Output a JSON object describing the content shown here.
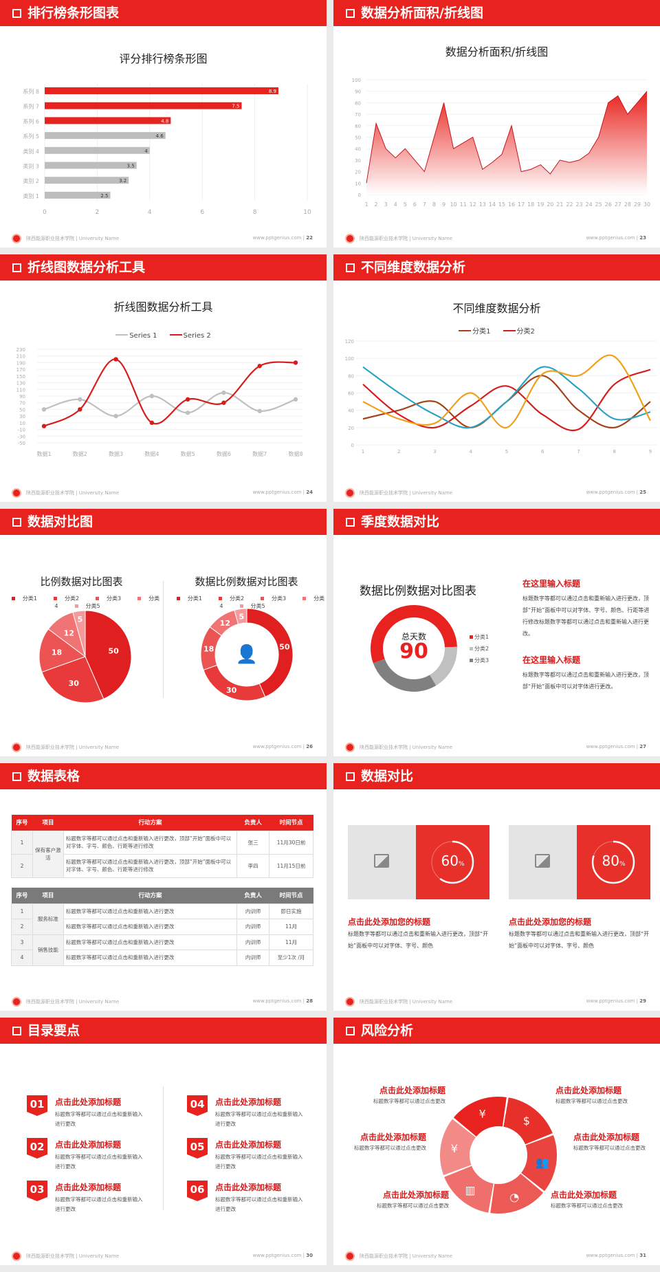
{
  "footer": {
    "school": "陕西能源职业技术学院 | University Name",
    "site": "www.pptgenius.com"
  },
  "colors": {
    "accent": "#e8231f",
    "gray_bar": "#bdbdbd",
    "dark_gray": "#7f7f7f"
  },
  "slides": [
    {
      "header": "排行榜条形图表",
      "page": "22",
      "chart_data": {
        "type": "bar",
        "orientation": "horizontal",
        "title": "评分排行榜条形图",
        "categories": [
          "系列 8",
          "系列 7",
          "系列 6",
          "系列 5",
          "类别 4",
          "类别 3",
          "类别 2",
          "类别 1"
        ],
        "values": [
          8.9,
          7.5,
          4.8,
          4.6,
          4,
          3.5,
          3.2,
          2.5
        ],
        "bar_colors": [
          "#e8231f",
          "#e8231f",
          "#e8231f",
          "#bdbdbd",
          "#bdbdbd",
          "#bdbdbd",
          "#bdbdbd",
          "#bdbdbd"
        ],
        "xlim": [
          0,
          10
        ],
        "xticks": [
          0,
          2,
          4,
          6,
          8,
          10
        ],
        "grid": true
      }
    },
    {
      "header": "数据分析面积/折线图",
      "page": "23",
      "chart_data": {
        "type": "area",
        "title": "数据分析面积/折线图",
        "x": [
          1,
          2,
          3,
          4,
          5,
          6,
          7,
          8,
          9,
          10,
          11,
          12,
          13,
          14,
          15,
          16,
          17,
          18,
          19,
          20,
          21,
          22,
          23,
          24,
          25,
          26,
          27,
          28,
          29,
          30
        ],
        "values": [
          10,
          62,
          40,
          32,
          40,
          30,
          20,
          50,
          80,
          40,
          45,
          50,
          22,
          28,
          35,
          60,
          20,
          22,
          26,
          18,
          30,
          28,
          30,
          36,
          50,
          80,
          86,
          70,
          80,
          90
        ],
        "ylim": [
          0,
          100
        ],
        "yticks": [
          0,
          10,
          20,
          30,
          40,
          50,
          60,
          70,
          80,
          90,
          100
        ],
        "color": "#e8231f",
        "grid": true
      }
    },
    {
      "header": "折线图数据分析工具",
      "page": "24",
      "chart_data": {
        "type": "line",
        "smooth": true,
        "title": "折线图数据分析工具",
        "categories": [
          "数据1",
          "数据2",
          "数据3",
          "数据4",
          "数据5",
          "数据6",
          "数据7",
          "数据8"
        ],
        "series": [
          {
            "name": "Series 1",
            "color": "#bfbfbf",
            "values": [
              50,
              80,
              30,
              90,
              40,
              100,
              45,
              80
            ]
          },
          {
            "name": "Series 2",
            "color": "#d71c1c",
            "values": [
              0,
              50,
              200,
              10,
              80,
              70,
              180,
              190
            ]
          }
        ],
        "ylim": [
          -50,
          230
        ],
        "yticks": [
          -50,
          -30,
          -10,
          10,
          30,
          50,
          70,
          90,
          110,
          130,
          150,
          170,
          190,
          210,
          230
        ],
        "legend": "top",
        "grid": true
      }
    },
    {
      "header": "不同维度数据分析",
      "page": "25",
      "chart_data": {
        "type": "line",
        "smooth": true,
        "title": "不同维度数据分析",
        "categories": [
          "1",
          "2",
          "3",
          "4",
          "5",
          "6",
          "7",
          "8",
          "9"
        ],
        "series": [
          {
            "name": "分类1",
            "color": "#a5421a",
            "values": [
              30,
              40,
              50,
              20,
              50,
              80,
              40,
              20,
              50
            ]
          },
          {
            "name": "分类2",
            "color": "#d71c1c",
            "values": [
              70,
              35,
              20,
              45,
              68,
              35,
              18,
              70,
              87
            ]
          },
          {
            "color": "#2aa3c4",
            "values": [
              90,
              60,
              35,
              20,
              50,
              90,
              65,
              30,
              38
            ]
          },
          {
            "color": "#f0a01a",
            "values": [
              50,
              30,
              25,
              60,
              20,
              82,
              80,
              102,
              28
            ]
          }
        ],
        "ylim": [
          0,
          120
        ],
        "yticks": [
          0,
          20,
          40,
          60,
          80,
          100,
          120
        ],
        "legend": "top",
        "grid": true
      }
    },
    {
      "header": "数据对比图",
      "page": "26",
      "chart_data": [
        {
          "type": "pie",
          "title": "比例数据对比图表",
          "categories": [
            "分类1",
            "分类2",
            "分类3",
            "分类4",
            "分类5"
          ],
          "values": [
            50,
            30,
            18,
            12,
            5
          ],
          "colors": [
            "#e02020",
            "#e83a3a",
            "#ec5454",
            "#f07474",
            "#f49a9a"
          ],
          "legend": "top"
        },
        {
          "type": "donut",
          "title": "数据比例数据对比图表",
          "categories": [
            "分类1",
            "分类2",
            "分类3",
            "分类4",
            "分类5"
          ],
          "values": [
            50,
            30,
            18,
            12,
            5
          ],
          "colors": [
            "#e02020",
            "#e83a3a",
            "#ec5454",
            "#f07474",
            "#f49a9a"
          ],
          "legend": "top",
          "center_icon": "customer-service-icon"
        }
      ]
    },
    {
      "header": "季度数据对比",
      "page": "27",
      "chart_data": {
        "type": "donut",
        "title": "数据比例数据对比图表",
        "center_label": "总天数",
        "center_value": "90",
        "categories": [
          "分类1",
          "分类2",
          "分类3"
        ],
        "shares_percent": [
          55,
          17,
          28
        ],
        "colors": [
          "#e8231f",
          "#c0c0c0",
          "#808080"
        ],
        "legend": "right"
      },
      "blocks": [
        {
          "title": "在这里输入标题",
          "text": "标题数字等都可以通过点击和重新输入进行更改，顶部“开始”面板中可以对字体、字号、颜色、行距等进行修改标题数字等都可以通过点击和重新输入进行更改。"
        },
        {
          "title": "在这里输入标题",
          "text": "标题数字等都可以通过点击和重新输入进行更改，顶部“开始”面板中可以对字体进行更改。"
        }
      ]
    },
    {
      "header": "数据表格",
      "page": "28",
      "columns": [
        "序号",
        "项目",
        "行动方案",
        "负责人",
        "时间节点"
      ],
      "table1": {
        "groups": [
          {
            "item": "保有客户激活",
            "rows": [
              {
                "no": "1",
                "plan": "标题数字等都可以通过点击和重新输入进行更改，顶部“开始”面板中可以对字体、字号、颜色、行距等进行修改",
                "owner": "张三",
                "time": "11月30日前"
              },
              {
                "no": "2",
                "plan": "标题数字等都可以通过点击和重新输入进行更改，顶部“开始”面板中可以对字体、字号、颜色、行距等进行修改",
                "owner": "李四",
                "time": "11月15日前"
              }
            ]
          }
        ]
      },
      "table2": {
        "groups": [
          {
            "item": "服务标准",
            "rows": [
              {
                "no": "1",
                "plan": "标题数字等都可以通过点击和重新输入进行更改",
                "owner": "内训师",
                "time": "即日实施"
              },
              {
                "no": "2",
                "plan": "标题数字等都可以通过点击和重新输入进行更改",
                "owner": "内训师",
                "time": "11月"
              }
            ]
          },
          {
            "item": "销售技能",
            "rows": [
              {
                "no": "3",
                "plan": "标题数字等都可以通过点击和重新输入进行更改",
                "owner": "内训师",
                "time": "11月"
              },
              {
                "no": "4",
                "plan": "标题数字等都可以通过点击和重新输入进行更改",
                "owner": "内训师",
                "time": "至少1次 /月"
              }
            ]
          }
        ]
      }
    },
    {
      "header": "数据对比",
      "page": "29",
      "cards": [
        {
          "percent": 60,
          "value": "60",
          "unit": "%",
          "title": "点击此处添加您的标题",
          "text": "标题数字等都可以通过点击和重新输入进行更改，顶部“开始”面板中可以对字体、字号、颜色",
          "image_icon": "add-image-icon"
        },
        {
          "percent": 80,
          "value": "80",
          "unit": "%",
          "title": "点击此处添加您的标题",
          "text": "标题数字等都可以通过点击和重新输入进行更改，顶部“开始”面板中可以对字体、字号、颜色",
          "image_icon": "add-image-icon"
        }
      ]
    },
    {
      "header": "目录要点",
      "page": "30",
      "items": [
        {
          "num": "01",
          "title": "点击此处添加标题",
          "text": "标题数字等都可以通过点击和重新输入进行更改"
        },
        {
          "num": "02",
          "title": "点击此处添加标题",
          "text": "标题数字等都可以通过点击和重新输入进行更改"
        },
        {
          "num": "03",
          "title": "点击此处添加标题",
          "text": "标题数字等都可以通过点击和重新输入进行更改"
        },
        {
          "num": "04",
          "title": "点击此处添加标题",
          "text": "标题数字等都可以通过点击和重新输入进行更改"
        },
        {
          "num": "05",
          "title": "点击此处添加标题",
          "text": "标题数字等都可以通过点击和重新输入进行更改"
        },
        {
          "num": "06",
          "title": "点击此处添加标题",
          "text": "标题数字等都可以通过点击和重新输入进行更改"
        }
      ]
    },
    {
      "header": "风险分析",
      "page": "31",
      "segments": [
        {
          "icon": "money-bag-icon",
          "glyph": "¥",
          "title": "点击此处添加标题",
          "text": "标题数字等都可以通过点击更改"
        },
        {
          "icon": "coins-icon",
          "glyph": "$",
          "title": "点击此处添加标题",
          "text": "标题数字等都可以通过点击更改"
        },
        {
          "icon": "users-icon",
          "glyph": "👥",
          "title": "点击此处添加标题",
          "text": "标题数字等都可以通过点击更改"
        },
        {
          "icon": "pie-chart-icon",
          "glyph": "◔",
          "title": "点击此处添加标题",
          "text": "标题数字等都可以通过点击更改"
        },
        {
          "icon": "building-icon",
          "glyph": "▥",
          "title": "点击此处添加标题",
          "text": "标题数字等都可以通过点击更改"
        },
        {
          "icon": "yen-hand-icon",
          "glyph": "¥",
          "title": "点击此处添加标题",
          "text": "标题数字等都可以通过点击更改"
        }
      ]
    }
  ]
}
